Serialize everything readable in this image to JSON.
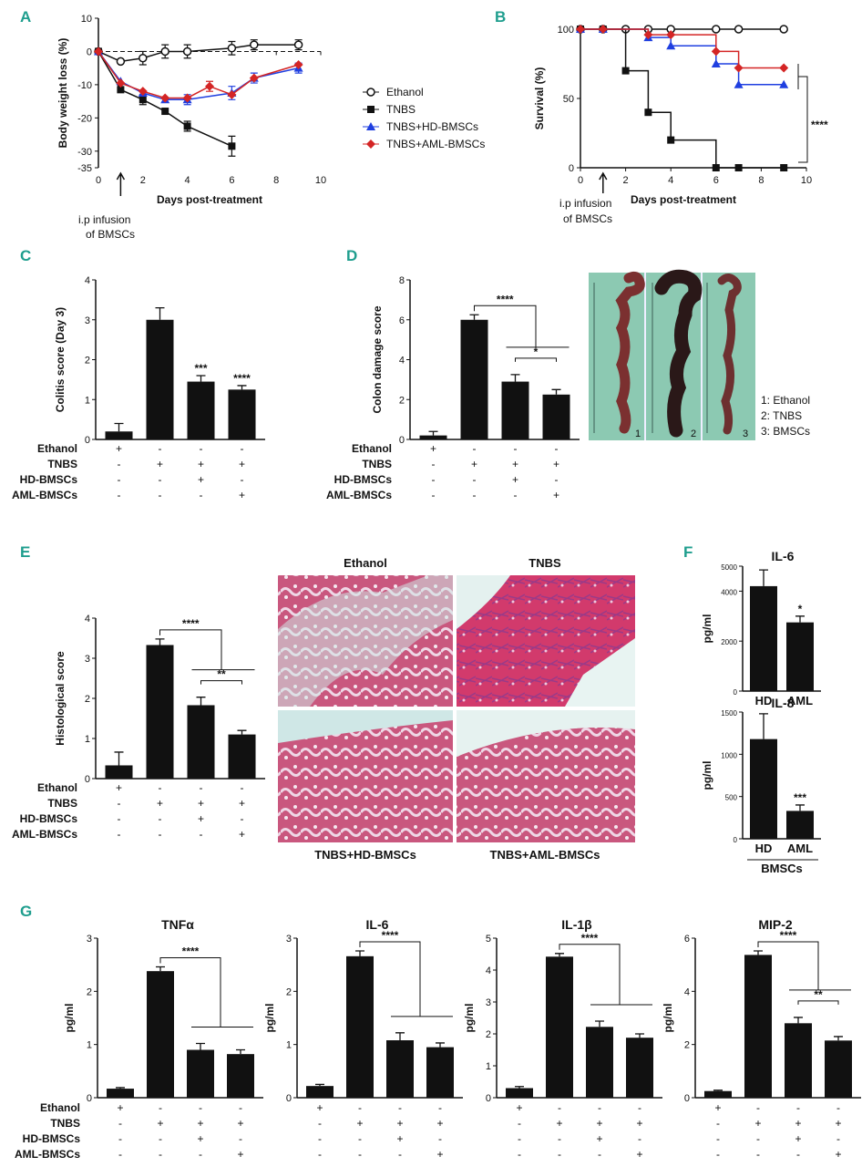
{
  "colors": {
    "ethanol": "#ffffff",
    "tnbs": "#111111",
    "hd": "#1f3fe0",
    "aml": "#d42525",
    "panel_label": "#1f9e8e",
    "bar": "#111111"
  },
  "panel_labels": [
    "A",
    "B",
    "C",
    "D",
    "E",
    "F",
    "G"
  ],
  "treatment_rows": [
    "Ethanol",
    "TNBS",
    "HD-BMSCs",
    "AML-BMSCs"
  ],
  "treatment_marks": [
    [
      "+",
      "-",
      "-",
      "-"
    ],
    [
      "-",
      "+",
      "+",
      "+"
    ],
    [
      "-",
      "-",
      "+",
      "-"
    ],
    [
      "-",
      "-",
      "-",
      "+"
    ]
  ],
  "panel_a": {
    "arrow_label": [
      "i.p infusion",
      "of BMSCs"
    ]
  },
  "panel_b": {
    "arrow_label": [
      "i.p infusion",
      "of BMSCs"
    ],
    "sig": "****"
  },
  "legend": {
    "items": [
      {
        "label": "Ethanol",
        "marker": "circle-open"
      },
      {
        "label": "TNBS",
        "marker": "square"
      },
      {
        "label": "TNBS+HD-BMSCs",
        "marker": "triangle"
      },
      {
        "label": "TNBS+AML-BMSCs",
        "marker": "diamond"
      }
    ]
  },
  "panel_d": {
    "photo_legend": [
      "1: Ethanol",
      "2: TNBS",
      "3: BMSCs"
    ],
    "photo_numbers": [
      "1",
      "2",
      "3"
    ]
  },
  "panel_e": {
    "photo_titles": [
      "Ethanol",
      "TNBS",
      "TNBS+HD-BMSCs",
      "TNBS+AML-BMSCs"
    ]
  },
  "panel_f": {
    "group_label": "BMSCs"
  },
  "chart_data": [
    {
      "id": "A",
      "type": "line",
      "xlabel": "Days post-treatment",
      "ylabel": "Body weight loss (%)",
      "xlim": [
        0,
        10
      ],
      "ylim": [
        -35,
        10
      ],
      "xticks": [
        0,
        2,
        4,
        6,
        8,
        10
      ],
      "yticks": [
        -35,
        -30,
        -20,
        -10,
        0,
        10
      ],
      "reference_line": 0,
      "series": [
        {
          "name": "Ethanol",
          "color": "#ffffff",
          "marker": "circle-open",
          "x": [
            0,
            1,
            2,
            3,
            4,
            6,
            7,
            9
          ],
          "y": [
            0,
            -3,
            -2,
            0,
            0,
            1,
            2,
            2
          ],
          "err": [
            0,
            0,
            2,
            2,
            2,
            2,
            1.5,
            1.5
          ]
        },
        {
          "name": "TNBS",
          "color": "#111111",
          "marker": "square",
          "x": [
            0,
            1,
            2,
            3,
            4,
            6
          ],
          "y": [
            0,
            -11.5,
            -14.5,
            -18,
            -22.5,
            -28.5
          ],
          "err": [
            0,
            0,
            1.5,
            0,
            1.5,
            3
          ]
        },
        {
          "name": "TNBS+HD-BMSCs",
          "color": "#1f3fe0",
          "marker": "triangle",
          "x": [
            0,
            1,
            2,
            3,
            4,
            6,
            7,
            9
          ],
          "y": [
            0,
            -9,
            -12.5,
            -14.5,
            -14.5,
            -12.5,
            -8,
            -5
          ],
          "err": [
            0,
            0,
            0,
            0,
            1.5,
            2,
            1.5,
            1.5
          ]
        },
        {
          "name": "TNBS+AML-BMSCs",
          "color": "#d42525",
          "marker": "diamond",
          "x": [
            0,
            1,
            2,
            3,
            4,
            5,
            6,
            7,
            9
          ],
          "y": [
            0,
            -9.5,
            -12,
            -14,
            -14,
            -10.5,
            -13,
            -8,
            -4
          ],
          "err": [
            0,
            0,
            0,
            0,
            0,
            1.5,
            0,
            0,
            0
          ]
        }
      ]
    },
    {
      "id": "B",
      "type": "line",
      "step": true,
      "xlabel": "Days post-treatment",
      "ylabel": "Survival (%)",
      "xlim": [
        0,
        10
      ],
      "ylim": [
        0,
        100
      ],
      "xticks": [
        0,
        2,
        4,
        6,
        8,
        10
      ],
      "yticks": [
        0,
        50,
        100
      ],
      "series": [
        {
          "name": "Ethanol",
          "color": "#ffffff",
          "marker": "circle-open",
          "x": [
            0,
            1,
            2,
            3,
            4,
            6,
            7,
            9
          ],
          "y": [
            100,
            100,
            100,
            100,
            100,
            100,
            100,
            100
          ]
        },
        {
          "name": "TNBS",
          "color": "#111111",
          "marker": "square",
          "x": [
            0,
            1,
            2,
            3,
            4,
            6,
            7,
            9
          ],
          "y": [
            100,
            100,
            70,
            40,
            20,
            0,
            0,
            0
          ]
        },
        {
          "name": "TNBS+HD-BMSCs",
          "color": "#1f3fe0",
          "marker": "triangle",
          "x": [
            0,
            1,
            3,
            4,
            6,
            7,
            9
          ],
          "y": [
            100,
            100,
            94,
            88,
            75,
            60,
            60
          ]
        },
        {
          "name": "TNBS+AML-BMSCs",
          "color": "#d42525",
          "marker": "diamond",
          "x": [
            0,
            1,
            3,
            4,
            6,
            7,
            9
          ],
          "y": [
            100,
            100,
            96,
            96,
            84,
            72,
            72
          ]
        }
      ]
    },
    {
      "id": "C",
      "type": "bar",
      "ylabel": "Colitis score (Day 3)",
      "ylim": [
        0,
        4
      ],
      "yticks": [
        0,
        1,
        2,
        3,
        4
      ],
      "values": [
        0.2,
        3.0,
        1.45,
        1.25
      ],
      "err": [
        0.2,
        0.3,
        0.15,
        0.1
      ],
      "bar_labels": [
        "",
        "",
        "***",
        "****"
      ]
    },
    {
      "id": "D",
      "type": "bar",
      "ylabel": "Colon damage score",
      "ylim": [
        0,
        8
      ],
      "yticks": [
        0,
        2,
        4,
        6,
        8
      ],
      "values": [
        0.2,
        6.0,
        2.9,
        2.25
      ],
      "err": [
        0.2,
        0.25,
        0.35,
        0.25
      ],
      "brackets": [
        {
          "label": "****"
        },
        {
          "label": "*"
        }
      ]
    },
    {
      "id": "E",
      "type": "bar",
      "ylabel": "Histological score",
      "ylim": [
        0,
        4
      ],
      "yticks": [
        0,
        1,
        2,
        3,
        4
      ],
      "values": [
        0.33,
        3.33,
        1.83,
        1.1
      ],
      "err": [
        0.33,
        0.15,
        0.2,
        0.1
      ],
      "brackets": [
        {
          "label": "****"
        },
        {
          "label": "**"
        }
      ]
    },
    {
      "id": "F1",
      "type": "bar",
      "title": "IL-6",
      "ylabel": "pg/ml",
      "ylim": [
        0,
        5000
      ],
      "yticks": [
        0,
        2000,
        4000,
        5000
      ],
      "categories": [
        "HD",
        "AML"
      ],
      "values": [
        4200,
        2750
      ],
      "err": [
        650,
        250
      ],
      "bar_labels": [
        "",
        "*"
      ]
    },
    {
      "id": "F2",
      "type": "bar",
      "title": "IL-8",
      "ylabel": "pg/ml",
      "ylim": [
        0,
        1500
      ],
      "yticks": [
        0,
        500,
        1000,
        1500
      ],
      "categories": [
        "HD",
        "AML"
      ],
      "values": [
        1180,
        330
      ],
      "err": [
        300,
        70
      ],
      "bar_labels": [
        "",
        "***"
      ]
    },
    {
      "id": "G1",
      "type": "bar",
      "title": "TNFα",
      "ylabel": "pg/ml",
      "ylim": [
        0,
        3
      ],
      "yticks": [
        0,
        1,
        2,
        3
      ],
      "values": [
        0.17,
        2.38,
        0.9,
        0.82
      ],
      "err": [
        0.02,
        0.08,
        0.12,
        0.08
      ],
      "brackets": [
        {
          "label": "****"
        }
      ]
    },
    {
      "id": "G2",
      "type": "bar",
      "title": "IL-6",
      "ylabel": "pg/ml",
      "ylim": [
        0,
        3
      ],
      "yticks": [
        0,
        1,
        2,
        3
      ],
      "values": [
        0.22,
        2.66,
        1.08,
        0.95
      ],
      "err": [
        0.03,
        0.1,
        0.14,
        0.08
      ],
      "brackets": [
        {
          "label": "****"
        }
      ]
    },
    {
      "id": "G3",
      "type": "bar",
      "title": "IL-1β",
      "ylabel": "pg/ml",
      "ylim": [
        0,
        5
      ],
      "yticks": [
        0,
        1,
        2,
        3,
        4,
        5
      ],
      "values": [
        0.3,
        4.42,
        2.22,
        1.88
      ],
      "err": [
        0.05,
        0.1,
        0.18,
        0.12
      ],
      "brackets": [
        {
          "label": "****"
        }
      ]
    },
    {
      "id": "G4",
      "type": "bar",
      "title": "MIP-2",
      "ylabel": "pg/ml",
      "ylim": [
        0,
        6
      ],
      "yticks": [
        0,
        2,
        4,
        6
      ],
      "values": [
        0.25,
        5.37,
        2.8,
        2.15
      ],
      "err": [
        0.03,
        0.15,
        0.22,
        0.15
      ],
      "brackets": [
        {
          "label": "****"
        },
        {
          "label": "**"
        }
      ]
    }
  ]
}
